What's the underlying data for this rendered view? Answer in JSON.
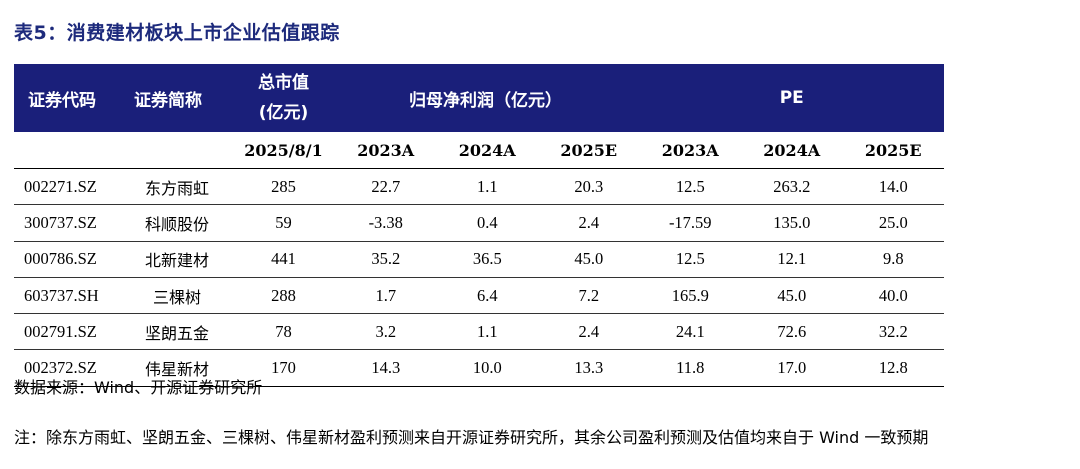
{
  "title": "表5：消费建材板块上市企业估值跟踪",
  "table": {
    "header": {
      "code": "证券代码",
      "name": "证券简称",
      "market_value_line1": "总市值",
      "market_value_line2": "(亿元)",
      "net_profit": "归母净利润（亿元）",
      "pe": "PE"
    },
    "subheader": [
      "2025/8/1",
      "2023A",
      "2024A",
      "2025E",
      "2023A",
      "2024A",
      "2025E"
    ],
    "rows": [
      {
        "code": "002271.SZ",
        "name": "东方雨虹",
        "mv": "285",
        "np23": "22.7",
        "np24": "1.1",
        "np25": "20.3",
        "pe23": "12.5",
        "pe24": "263.2",
        "pe25": "14.0"
      },
      {
        "code": "300737.SZ",
        "name": "科顺股份",
        "mv": "59",
        "np23": "-3.38",
        "np24": "0.4",
        "np25": "2.4",
        "pe23": "-17.59",
        "pe24": "135.0",
        "pe25": "25.0"
      },
      {
        "code": "000786.SZ",
        "name": "北新建材",
        "mv": "441",
        "np23": "35.2",
        "np24": "36.5",
        "np25": "45.0",
        "pe23": "12.5",
        "pe24": "12.1",
        "pe25": "9.8"
      },
      {
        "code": "603737.SH",
        "name": "三棵树",
        "mv": "288",
        "np23": "1.7",
        "np24": "6.4",
        "np25": "7.2",
        "pe23": "165.9",
        "pe24": "45.0",
        "pe25": "40.0"
      },
      {
        "code": "002791.SZ",
        "name": "坚朗五金",
        "mv": "78",
        "np23": "3.2",
        "np24": "1.1",
        "np25": "2.4",
        "pe23": "24.1",
        "pe24": "72.6",
        "pe25": "32.2"
      },
      {
        "code": "002372.SZ",
        "name": "伟星新材",
        "mv": "170",
        "np23": "14.3",
        "np24": "10.0",
        "np25": "13.3",
        "pe23": "11.8",
        "pe24": "17.0",
        "pe25": "12.8"
      }
    ]
  },
  "source": "数据来源：Wind、开源证券研究所",
  "note": "注：除东方雨虹、坚朗五金、三棵树、伟星新材盈利预测来自开源证券研究所，其余公司盈利预测及估值均来自于 Wind 一致预期",
  "colors": {
    "header_bg": "#1a1f7a",
    "title": "#1d2a7c"
  }
}
